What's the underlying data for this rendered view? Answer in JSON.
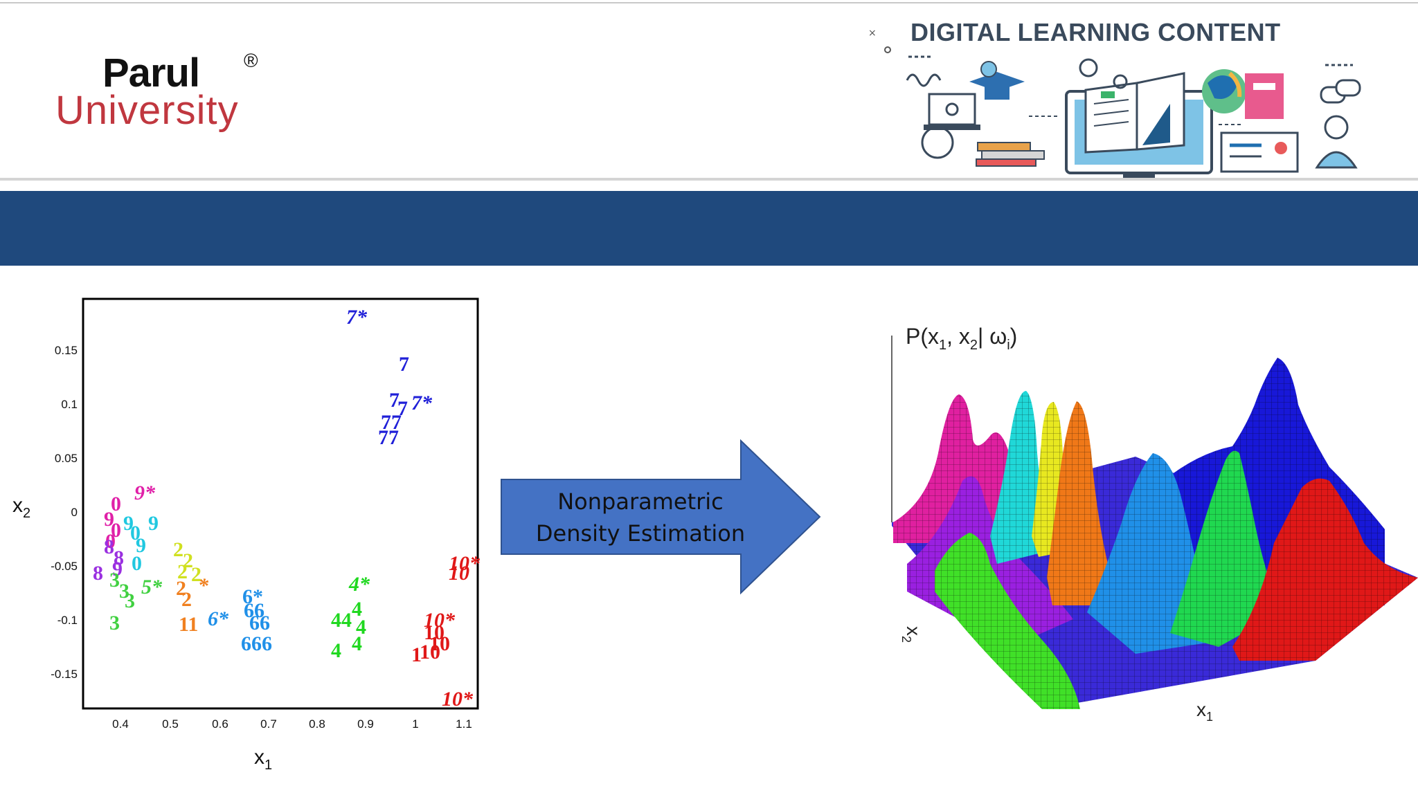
{
  "header": {
    "logo": {
      "name": "Parul",
      "registered": "®",
      "subtitle": "University"
    },
    "banner_title": "DIGITAL LEARNING CONTENT"
  },
  "colors": {
    "band": "#1f497d",
    "arrow_fill": "#4472c4",
    "logo_red": "#c0373f"
  },
  "scatter": {
    "xlabel": "x",
    "xlabel_sub": "1",
    "ylabel": "x",
    "ylabel_sub": "2",
    "x_ticks": [
      "0.4",
      "0.5",
      "0.6",
      "0.7",
      "0.8",
      "0.9",
      "1",
      "1.1"
    ],
    "y_ticks": [
      "0.15",
      "0.1",
      "0.05",
      "0",
      "-0.05",
      "-0.1",
      "-0.15"
    ],
    "point_labels": [
      "7*",
      "7",
      "7*",
      "9*",
      "9",
      "8",
      "5*",
      "6*",
      "4*",
      "10*",
      "10*",
      "3",
      "4",
      "6*",
      "666",
      "10*",
      "11"
    ]
  },
  "arrow": {
    "line1": "Nonparametric",
    "line2": "Density Estimation"
  },
  "surface_plot": {
    "zlabel": "P(x",
    "zlabel_sub1": "1",
    "zlabel_mid": ", x",
    "zlabel_sub2": "2",
    "zlabel_end": "| ω",
    "zlabel_sub3": "i",
    "zlabel_close": ")",
    "xlabel": "x",
    "xlabel_sub": "1",
    "ylabel": "x",
    "ylabel_sub": "2"
  }
}
